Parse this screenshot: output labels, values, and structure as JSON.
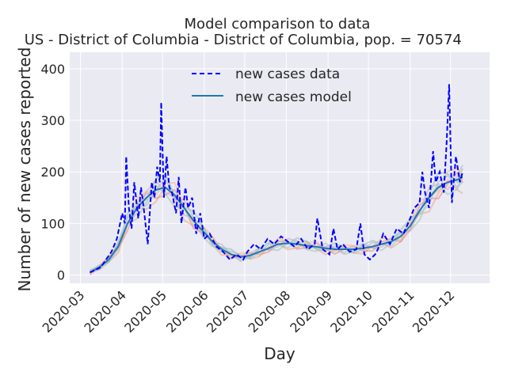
{
  "chart_data": {
    "type": "line",
    "title_line1": "Model comparison to data",
    "title_line2": " US - District of Columbia - District of Columbia, pop. = 70574",
    "xlabel": "Day",
    "ylabel": "Number of new cases reported",
    "x_ticks": [
      "2020-03",
      "2020-04",
      "2020-05",
      "2020-06",
      "2020-07",
      "2020-08",
      "2020-09",
      "2020-10",
      "2020-11",
      "2020-12"
    ],
    "x_tick_dates": [
      "2020-03-01",
      "2020-04-01",
      "2020-05-01",
      "2020-06-01",
      "2020-07-01",
      "2020-08-01",
      "2020-09-01",
      "2020-10-01",
      "2020-11-01",
      "2020-12-01"
    ],
    "xlim": [
      "2020-02-22",
      "2020-12-30"
    ],
    "y_ticks": [
      0,
      100,
      200,
      300,
      400
    ],
    "ylim": [
      -16,
      432
    ],
    "grid": true,
    "legend": {
      "placement": "top-center",
      "entries": [
        "new cases data",
        "new cases model"
      ]
    },
    "series": [
      {
        "name": "new cases data",
        "style": "dashed",
        "color": "#0000ff",
        "x": [
          "2020-03-08",
          "2020-03-12",
          "2020-03-16",
          "2020-03-20",
          "2020-03-24",
          "2020-03-28",
          "2020-04-01",
          "2020-04-03",
          "2020-04-04",
          "2020-04-06",
          "2020-04-08",
          "2020-04-10",
          "2020-04-13",
          "2020-04-15",
          "2020-04-17",
          "2020-04-20",
          "2020-04-23",
          "2020-04-25",
          "2020-04-27",
          "2020-04-29",
          "2020-04-30",
          "2020-05-02",
          "2020-05-04",
          "2020-05-06",
          "2020-05-08",
          "2020-05-11",
          "2020-05-13",
          "2020-05-15",
          "2020-05-18",
          "2020-05-20",
          "2020-05-23",
          "2020-05-26",
          "2020-05-29",
          "2020-06-01",
          "2020-06-05",
          "2020-06-10",
          "2020-06-15",
          "2020-06-20",
          "2020-06-25",
          "2020-06-30",
          "2020-07-03",
          "2020-07-08",
          "2020-07-13",
          "2020-07-18",
          "2020-07-23",
          "2020-07-28",
          "2020-08-02",
          "2020-08-07",
          "2020-08-12",
          "2020-08-17",
          "2020-08-22",
          "2020-08-24",
          "2020-08-28",
          "2020-09-02",
          "2020-09-05",
          "2020-09-08",
          "2020-09-12",
          "2020-09-17",
          "2020-09-22",
          "2020-09-25",
          "2020-09-28",
          "2020-10-02",
          "2020-10-06",
          "2020-10-08",
          "2020-10-12",
          "2020-10-17",
          "2020-10-22",
          "2020-10-27",
          "2020-11-01",
          "2020-11-04",
          "2020-11-08",
          "2020-11-10",
          "2020-11-12",
          "2020-11-15",
          "2020-11-18",
          "2020-11-20",
          "2020-11-23",
          "2020-11-26",
          "2020-11-28",
          "2020-11-30",
          "2020-12-02",
          "2020-12-05",
          "2020-12-08",
          "2020-12-10"
        ],
        "y": [
          5,
          10,
          15,
          30,
          45,
          70,
          120,
          100,
          230,
          130,
          90,
          180,
          110,
          170,
          130,
          60,
          180,
          150,
          210,
          180,
          335,
          150,
          230,
          170,
          160,
          120,
          190,
          100,
          170,
          130,
          150,
          80,
          120,
          70,
          80,
          55,
          45,
          30,
          40,
          30,
          45,
          60,
          50,
          70,
          60,
          75,
          65,
          55,
          70,
          50,
          60,
          110,
          50,
          40,
          90,
          50,
          60,
          45,
          50,
          100,
          40,
          30,
          40,
          50,
          80,
          60,
          90,
          80,
          110,
          130,
          140,
          200,
          160,
          130,
          240,
          180,
          200,
          160,
          250,
          370,
          140,
          230,
          180,
          200
        ]
      },
      {
        "name": "new cases model",
        "style": "solid",
        "color": "#1f77b4",
        "x": [
          "2020-03-08",
          "2020-03-15",
          "2020-03-22",
          "2020-03-29",
          "2020-04-05",
          "2020-04-12",
          "2020-04-19",
          "2020-04-26",
          "2020-05-03",
          "2020-05-10",
          "2020-05-17",
          "2020-05-24",
          "2020-05-31",
          "2020-06-07",
          "2020-06-14",
          "2020-06-21",
          "2020-06-28",
          "2020-07-05",
          "2020-07-12",
          "2020-07-19",
          "2020-07-26",
          "2020-08-02",
          "2020-08-09",
          "2020-08-16",
          "2020-08-23",
          "2020-08-30",
          "2020-09-06",
          "2020-09-13",
          "2020-09-20",
          "2020-09-27",
          "2020-10-04",
          "2020-10-11",
          "2020-10-18",
          "2020-10-25",
          "2020-11-01",
          "2020-11-08",
          "2020-11-15",
          "2020-11-22",
          "2020-11-29",
          "2020-12-06",
          "2020-12-10"
        ],
        "y": [
          5,
          15,
          30,
          55,
          100,
          130,
          150,
          165,
          170,
          155,
          130,
          105,
          85,
          65,
          50,
          40,
          35,
          38,
          45,
          52,
          60,
          62,
          60,
          57,
          55,
          52,
          50,
          50,
          50,
          52,
          55,
          60,
          65,
          75,
          95,
          125,
          150,
          170,
          180,
          185,
          190
        ]
      }
    ]
  }
}
